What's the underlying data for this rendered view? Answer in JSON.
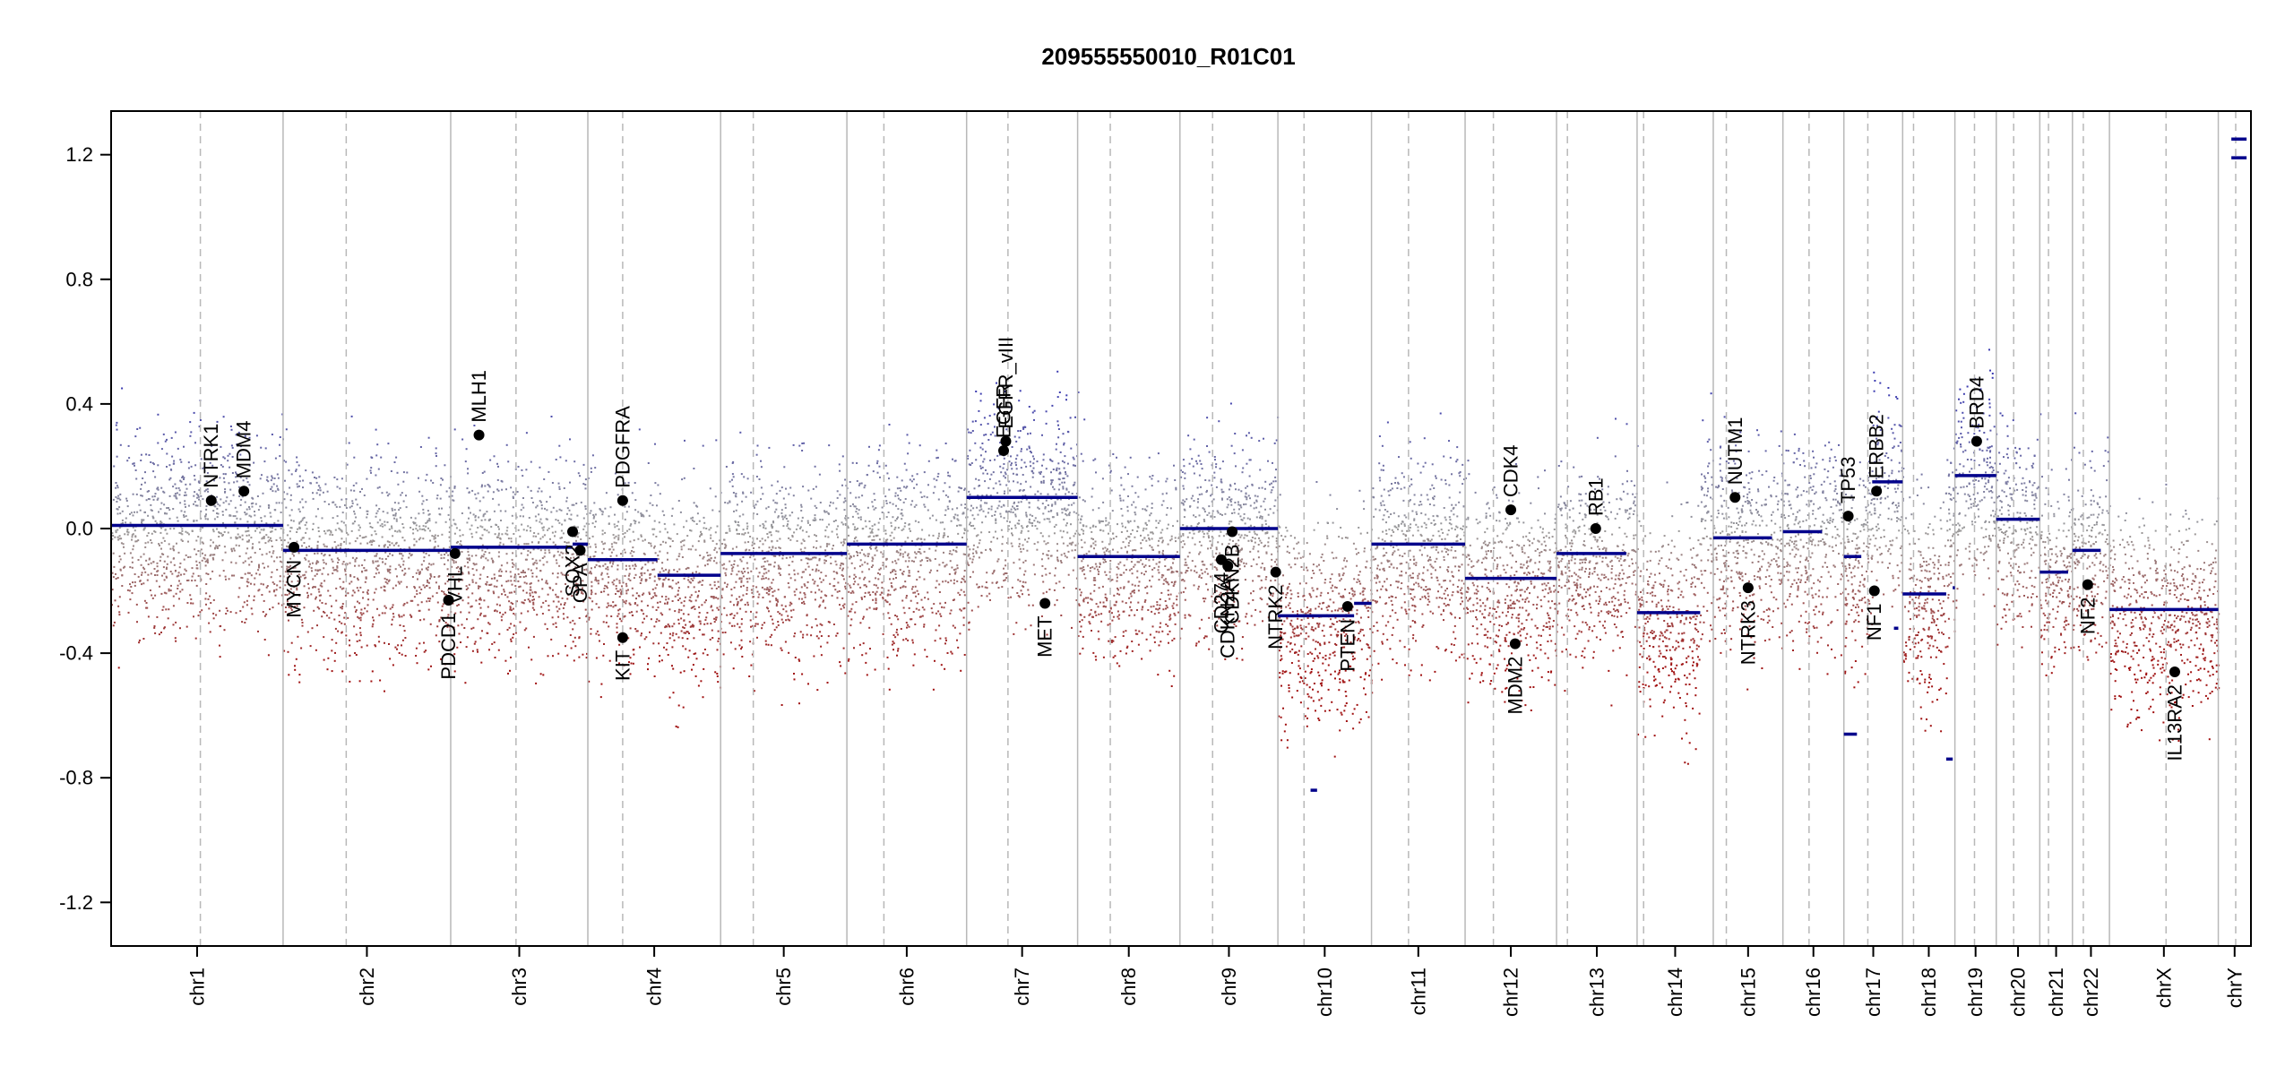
{
  "colors": {
    "gain": "#3b3bb0",
    "loss": "#a01010",
    "neutral": "#9a9a9a",
    "segment": "#00008b",
    "boundary": "#b8b8b8",
    "centromere": "#b8b8b8",
    "gene_point": "#000000"
  },
  "chart_data": {
    "type": "scatter",
    "title": "209555550010_R01C01",
    "xlabel": "",
    "ylabel": "",
    "ylim": [
      -1.34,
      1.34
    ],
    "y_ticks": [
      1.2,
      0.8,
      0.4,
      0.0,
      -0.4,
      -0.8,
      -1.2
    ],
    "y_tick_labels": [
      "1.2",
      "0.8",
      "0.4",
      "0.0",
      "-0.4",
      "-0.8",
      "-1.2"
    ],
    "grid": false,
    "chromosomes": [
      {
        "name": "chr1",
        "start": 0.0,
        "end": 7.9,
        "cent": 4.1
      },
      {
        "name": "chr2",
        "start": 7.9,
        "end": 15.6,
        "cent": 10.8
      },
      {
        "name": "chr3",
        "start": 15.6,
        "end": 21.9,
        "cent": 18.6
      },
      {
        "name": "chr4",
        "start": 21.9,
        "end": 28.0,
        "cent": 23.5
      },
      {
        "name": "chr5",
        "start": 28.0,
        "end": 33.8,
        "cent": 29.5
      },
      {
        "name": "chr6",
        "start": 33.8,
        "end": 39.3,
        "cent": 35.5
      },
      {
        "name": "chr7",
        "start": 39.3,
        "end": 44.4,
        "cent": 41.2
      },
      {
        "name": "chr8",
        "start": 44.4,
        "end": 49.1,
        "cent": 45.9
      },
      {
        "name": "chr9",
        "start": 49.1,
        "end": 53.6,
        "cent": 50.6
      },
      {
        "name": "chr10",
        "start": 53.6,
        "end": 57.9,
        "cent": 54.8
      },
      {
        "name": "chr11",
        "start": 57.9,
        "end": 62.2,
        "cent": 59.6
      },
      {
        "name": "chr12",
        "start": 62.2,
        "end": 66.4,
        "cent": 63.5
      },
      {
        "name": "chr13",
        "start": 66.4,
        "end": 70.1,
        "cent": 66.9
      },
      {
        "name": "chr14",
        "start": 70.1,
        "end": 73.6,
        "cent": 70.4
      },
      {
        "name": "chr15",
        "start": 73.6,
        "end": 76.8,
        "cent": 74.2
      },
      {
        "name": "chr16",
        "start": 76.8,
        "end": 79.6,
        "cent": 78.0
      },
      {
        "name": "chr17",
        "start": 79.6,
        "end": 82.3,
        "cent": 80.7
      },
      {
        "name": "chr18",
        "start": 82.3,
        "end": 84.7,
        "cent": 82.8
      },
      {
        "name": "chr19",
        "start": 84.7,
        "end": 86.6,
        "cent": 85.6
      },
      {
        "name": "chr20",
        "start": 86.6,
        "end": 88.6,
        "cent": 87.4
      },
      {
        "name": "chr21",
        "start": 88.6,
        "end": 90.1,
        "cent": 89.0
      },
      {
        "name": "chr22",
        "start": 90.1,
        "end": 91.8,
        "cent": 90.6
      },
      {
        "name": "chrX",
        "start": 91.8,
        "end": 96.8,
        "cent": 94.4
      },
      {
        "name": "chrY",
        "start": 96.8,
        "end": 98.3,
        "cent": 97.6
      }
    ],
    "segments": [
      {
        "x0": 0.0,
        "x1": 7.9,
        "y": 0.01
      },
      {
        "x0": 7.9,
        "x1": 15.6,
        "y": -0.07
      },
      {
        "x0": 15.6,
        "x1": 21.2,
        "y": -0.06
      },
      {
        "x0": 21.2,
        "x1": 21.9,
        "y": -0.05
      },
      {
        "x0": 21.9,
        "x1": 25.1,
        "y": -0.1
      },
      {
        "x0": 25.1,
        "x1": 28.0,
        "y": -0.15
      },
      {
        "x0": 28.0,
        "x1": 33.8,
        "y": -0.08
      },
      {
        "x0": 33.8,
        "x1": 39.3,
        "y": -0.05
      },
      {
        "x0": 39.3,
        "x1": 44.4,
        "y": 0.1
      },
      {
        "x0": 44.4,
        "x1": 49.1,
        "y": -0.09
      },
      {
        "x0": 49.1,
        "x1": 53.6,
        "y": 0.0
      },
      {
        "x0": 53.6,
        "x1": 57.1,
        "y": -0.28
      },
      {
        "x0": 55.1,
        "x1": 55.4,
        "y": -0.84
      },
      {
        "x0": 57.1,
        "x1": 57.9,
        "y": -0.24
      },
      {
        "x0": 57.9,
        "x1": 62.2,
        "y": -0.05
      },
      {
        "x0": 62.2,
        "x1": 66.4,
        "y": -0.16
      },
      {
        "x0": 66.4,
        "x1": 69.6,
        "y": -0.08
      },
      {
        "x0": 70.1,
        "x1": 73.0,
        "y": -0.27
      },
      {
        "x0": 73.6,
        "x1": 76.3,
        "y": -0.03
      },
      {
        "x0": 76.8,
        "x1": 78.6,
        "y": -0.01
      },
      {
        "x0": 79.6,
        "x1": 80.4,
        "y": -0.09
      },
      {
        "x0": 79.6,
        "x1": 80.2,
        "y": -0.66
      },
      {
        "x0": 80.9,
        "x1": 82.3,
        "y": 0.15
      },
      {
        "x0": 81.9,
        "x1": 82.1,
        "y": -0.32
      },
      {
        "x0": 82.3,
        "x1": 84.3,
        "y": -0.21
      },
      {
        "x0": 84.3,
        "x1": 84.6,
        "y": -0.74
      },
      {
        "x0": 84.6,
        "x1": 84.7,
        "y": -0.19
      },
      {
        "x0": 84.7,
        "x1": 86.6,
        "y": 0.17
      },
      {
        "x0": 86.6,
        "x1": 88.6,
        "y": 0.03
      },
      {
        "x0": 88.6,
        "x1": 89.9,
        "y": -0.14
      },
      {
        "x0": 90.1,
        "x1": 91.4,
        "y": -0.07
      },
      {
        "x0": 91.8,
        "x1": 96.8,
        "y": -0.26
      },
      {
        "x0": 97.4,
        "x1": 98.1,
        "y": 1.25
      },
      {
        "x0": 97.4,
        "x1": 98.1,
        "y": 1.19
      }
    ],
    "genes": [
      {
        "name": "NTRK1",
        "x": 4.6,
        "y": 0.09
      },
      {
        "name": "MDM4",
        "x": 6.1,
        "y": 0.12
      },
      {
        "name": "MYCN",
        "x": 8.4,
        "y": -0.06
      },
      {
        "name": "PDCD1",
        "x": 15.5,
        "y": -0.23
      },
      {
        "name": "VHL",
        "x": 15.8,
        "y": -0.08
      },
      {
        "name": "MLH1",
        "x": 16.9,
        "y": 0.3
      },
      {
        "name": "SOX2",
        "x": 21.2,
        "y": -0.01
      },
      {
        "name": "OPA",
        "x": 21.55,
        "y": -0.07
      },
      {
        "name": "PDGFRA",
        "x": 23.5,
        "y": 0.09
      },
      {
        "name": "KIT",
        "x": 23.5,
        "y": -0.35
      },
      {
        "name": "EGFR",
        "x": 41.0,
        "y": 0.25
      },
      {
        "name": "EGFR_vIII",
        "x": 41.1,
        "y": 0.28
      },
      {
        "name": "MET",
        "x": 42.9,
        "y": -0.24
      },
      {
        "name": "CD274",
        "x": 51.0,
        "y": -0.1
      },
      {
        "name": "CDKN2A",
        "x": 51.3,
        "y": -0.12
      },
      {
        "name": "CDKN2B",
        "x": 51.5,
        "y": -0.01
      },
      {
        "name": "NTRK2",
        "x": 53.5,
        "y": -0.14
      },
      {
        "name": "PTEN",
        "x": 56.8,
        "y": -0.25
      },
      {
        "name": "CDK4",
        "x": 64.3,
        "y": 0.06
      },
      {
        "name": "MDM2",
        "x": 64.5,
        "y": -0.37
      },
      {
        "name": "RB1",
        "x": 68.2,
        "y": 0.0
      },
      {
        "name": "NUTM1",
        "x": 74.6,
        "y": 0.1
      },
      {
        "name": "NTRK3",
        "x": 75.2,
        "y": -0.19
      },
      {
        "name": "TP53",
        "x": 79.8,
        "y": 0.04
      },
      {
        "name": "NF1",
        "x": 81.0,
        "y": -0.2
      },
      {
        "name": "ERBB2",
        "x": 81.1,
        "y": 0.12
      },
      {
        "name": "BRD4",
        "x": 85.7,
        "y": 0.28
      },
      {
        "name": "NF2",
        "x": 90.8,
        "y": -0.18
      },
      {
        "name": "IL13RA2",
        "x": 94.8,
        "y": -0.46
      }
    ]
  }
}
